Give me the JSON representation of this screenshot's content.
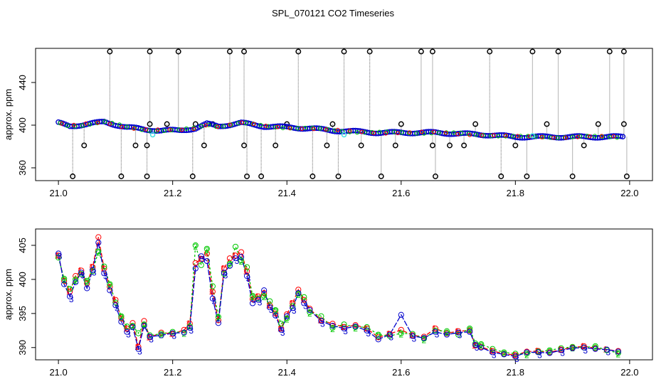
{
  "figure": {
    "title": "SPL_070121  CO2 Timeseries"
  },
  "colors": {
    "series1": "#ff0000",
    "series2": "#00c800",
    "series3": "#0000cc",
    "points_outline": "#000000",
    "cyan_points": "#40e0e0",
    "spikes": "#808080"
  },
  "chart_data": [
    {
      "type": "scatter",
      "title": "",
      "xlabel": "",
      "ylabel": "approx. ppm",
      "xlim": [
        20.96,
        22.04
      ],
      "ylim": [
        348,
        472
      ],
      "xticks": [
        "21.0",
        "21.2",
        "21.4",
        "21.6",
        "21.8",
        "22.0"
      ],
      "yticks": [
        "360",
        "400",
        "440"
      ],
      "grid": false,
      "baseline": {
        "x": [
          21.0,
          21.02,
          21.05,
          21.08,
          21.12,
          21.15,
          21.18,
          21.21,
          21.24,
          21.26,
          21.28,
          21.32,
          21.36,
          21.4,
          21.44,
          21.48,
          21.52,
          21.56,
          21.6,
          21.64,
          21.66,
          21.7,
          21.75,
          21.8,
          21.83,
          21.88,
          21.92,
          21.96,
          21.99
        ],
        "y": [
          402,
          399,
          401,
          403,
          398,
          396,
          395,
          395,
          397,
          401,
          399,
          402,
          399,
          398,
          397,
          395,
          394,
          393,
          393,
          393,
          393,
          392,
          391,
          389,
          389,
          389,
          389,
          389,
          389
        ]
      },
      "spikes_high": [
        21.09,
        21.16,
        21.21,
        21.3,
        21.325,
        21.42,
        21.5,
        21.545,
        21.635,
        21.655,
        21.755,
        21.83,
        21.875,
        21.965,
        21.99
      ],
      "spikes_low": [
        21.025,
        21.11,
        21.155,
        21.235,
        21.33,
        21.355,
        21.445,
        21.49,
        21.565,
        21.66,
        21.775,
        21.82,
        21.9,
        21.995
      ],
      "spikes_mid_low": [
        21.045,
        21.135,
        21.155,
        21.255,
        21.325,
        21.38,
        21.47,
        21.53,
        21.59,
        21.655,
        21.685,
        21.71,
        21.8,
        21.92
      ],
      "spikes_mid_high": [
        21.16,
        21.19,
        21.24,
        21.27,
        21.4,
        21.48,
        21.6,
        21.73,
        21.855,
        21.945,
        21.99
      ],
      "cyan_points": {
        "x": [
          21.165,
          21.5,
          21.83
        ],
        "y": [
          391,
          391,
          390
        ]
      }
    },
    {
      "type": "line",
      "title": "",
      "xlabel": "",
      "ylabel": "approx. ppm",
      "xlim": [
        20.96,
        22.04
      ],
      "ylim": [
        388.2,
        407.4
      ],
      "xticks": [
        "21.0",
        "21.2",
        "21.4",
        "21.6",
        "21.8",
        "22.0"
      ],
      "yticks": [
        "390",
        "395",
        "400",
        "405"
      ],
      "grid": false,
      "legend": "none",
      "series": [
        {
          "label_mark": "1",
          "x": [
            21.0,
            21.01,
            21.02,
            21.03,
            21.04,
            21.05,
            21.06,
            21.07,
            21.08,
            21.09,
            21.1,
            21.11,
            21.12,
            21.13,
            21.14,
            21.15,
            21.16,
            21.18,
            21.2,
            21.22,
            21.23,
            21.24,
            21.25,
            21.26,
            21.27,
            21.28,
            21.29,
            21.3,
            21.31,
            21.32,
            21.33,
            21.34,
            21.35,
            21.36,
            21.37,
            21.38,
            21.39,
            21.4,
            21.41,
            21.42,
            21.43,
            21.44,
            21.46,
            21.48,
            21.5,
            21.52,
            21.54,
            21.56,
            21.58,
            21.6,
            21.62,
            21.64,
            21.66,
            21.68,
            21.7,
            21.72,
            21.73,
            21.74,
            21.76,
            21.78,
            21.8,
            21.82,
            21.84,
            21.86,
            21.88,
            21.9,
            21.92,
            21.94,
            21.96,
            21.98
          ],
          "y": [
            403.5,
            399.8,
            398.2,
            400.5,
            401.3,
            399.4,
            401.8,
            406.2,
            401.6,
            398.9,
            397.0,
            394.3,
            392.8,
            393.6,
            390.1,
            393.9,
            391.5,
            392.2,
            392.0,
            392.6,
            393.5,
            402.4,
            403.0,
            403.8,
            398.2,
            394.0,
            401.6,
            403.1,
            403.5,
            404.0,
            401.2,
            397.1,
            397.5,
            398.0,
            396.2,
            395.0,
            392.8,
            394.9,
            396.5,
            398.5,
            397.0,
            395.7,
            394.0,
            393.5,
            393.0,
            393.3,
            392.8,
            391.5,
            392.0,
            392.6,
            391.8,
            391.6,
            392.8,
            392.1,
            392.4,
            392.5,
            390.3,
            390.1,
            389.5,
            389.1,
            388.9,
            389.4,
            389.5,
            389.3,
            389.7,
            390.0,
            390.2,
            389.9,
            389.7,
            389.5
          ]
        },
        {
          "label_mark": "2",
          "x": [
            21.0,
            21.01,
            21.02,
            21.03,
            21.04,
            21.05,
            21.06,
            21.07,
            21.08,
            21.09,
            21.1,
            21.11,
            21.12,
            21.13,
            21.14,
            21.15,
            21.16,
            21.18,
            21.2,
            21.22,
            21.23,
            21.24,
            21.25,
            21.26,
            21.27,
            21.28,
            21.29,
            21.3,
            21.31,
            21.32,
            21.33,
            21.34,
            21.35,
            21.36,
            21.37,
            21.38,
            21.39,
            21.4,
            21.41,
            21.42,
            21.43,
            21.44,
            21.46,
            21.48,
            21.5,
            21.52,
            21.54,
            21.56,
            21.58,
            21.6,
            21.62,
            21.64,
            21.66,
            21.68,
            21.7,
            21.72,
            21.73,
            21.74,
            21.76,
            21.78,
            21.8,
            21.82,
            21.84,
            21.86,
            21.88,
            21.9,
            21.92,
            21.94,
            21.96,
            21.98
          ],
          "y": [
            403.2,
            400.1,
            398.6,
            400.0,
            400.8,
            399.8,
            401.2,
            404.1,
            401.9,
            399.3,
            396.6,
            394.6,
            393.1,
            393.2,
            392.1,
            393.4,
            391.8,
            392.0,
            392.3,
            392.2,
            393.1,
            405.0,
            402.1,
            404.5,
            399.0,
            394.5,
            400.8,
            402.3,
            404.8,
            402.8,
            401.8,
            397.6,
            397.2,
            397.6,
            396.8,
            395.5,
            393.5,
            394.3,
            396.1,
            397.9,
            397.4,
            395.2,
            394.6,
            392.9,
            393.4,
            393.0,
            393.0,
            391.9,
            391.7,
            392.1,
            392.0,
            391.3,
            392.5,
            392.4,
            391.9,
            392.8,
            390.6,
            390.5,
            389.8,
            389.3,
            389.1,
            389.1,
            389.4,
            389.6,
            389.9,
            390.1,
            390.0,
            390.2,
            389.6,
            389.2
          ]
        },
        {
          "label_mark": "3",
          "x": [
            21.0,
            21.01,
            21.02,
            21.03,
            21.04,
            21.05,
            21.06,
            21.07,
            21.08,
            21.09,
            21.1,
            21.11,
            21.12,
            21.13,
            21.14,
            21.15,
            21.16,
            21.18,
            21.2,
            21.22,
            21.23,
            21.24,
            21.25,
            21.26,
            21.27,
            21.28,
            21.29,
            21.3,
            21.31,
            21.32,
            21.33,
            21.34,
            21.35,
            21.36,
            21.37,
            21.38,
            21.39,
            21.4,
            21.41,
            21.42,
            21.43,
            21.44,
            21.46,
            21.48,
            21.5,
            21.52,
            21.54,
            21.56,
            21.58,
            21.6,
            21.62,
            21.64,
            21.66,
            21.68,
            21.7,
            21.72,
            21.73,
            21.74,
            21.76,
            21.78,
            21.8,
            21.82,
            21.84,
            21.86,
            21.88,
            21.9,
            21.92,
            21.94,
            21.96,
            21.98
          ],
          "y": [
            403.8,
            399.3,
            397.5,
            399.6,
            401.0,
            398.7,
            401.4,
            405.4,
            400.9,
            398.4,
            396.2,
            393.8,
            392.3,
            393.0,
            389.8,
            393.2,
            391.6,
            391.8,
            392.1,
            392.2,
            392.9,
            401.6,
            403.4,
            402.7,
            397.2,
            393.6,
            401.0,
            402.0,
            403.1,
            403.3,
            400.5,
            396.5,
            397.0,
            398.4,
            395.9,
            394.7,
            392.6,
            394.6,
            395.8,
            398.0,
            396.5,
            395.5,
            393.9,
            393.2,
            392.8,
            393.1,
            392.5,
            391.2,
            391.9,
            394.8,
            391.7,
            391.4,
            392.3,
            391.9,
            392.2,
            392.3,
            390.4,
            390.0,
            389.3,
            389.0,
            388.7,
            389.3,
            389.3,
            389.2,
            389.6,
            389.9,
            390.0,
            389.8,
            389.7,
            389.4
          ]
        }
      ]
    }
  ]
}
